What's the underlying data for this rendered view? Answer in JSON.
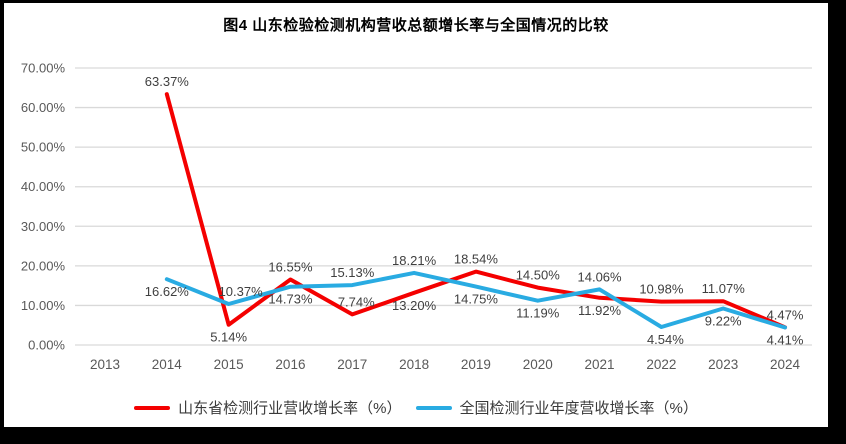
{
  "window": {
    "background": "#000000",
    "canvas_background": "#ffffff"
  },
  "title": "图4  山东检验检测机构营收总额增长率与全国情况的比较",
  "chart_data": {
    "type": "line",
    "title": "图4  山东检验检测机构营收总额增长率与全国情况的比较",
    "categories": [
      "2013",
      "2014",
      "2015",
      "2016",
      "2017",
      "2018",
      "2019",
      "2020",
      "2021",
      "2022",
      "2023",
      "2024"
    ],
    "series": [
      {
        "name": "山东省检测行业营收增长率（%）",
        "color": "#f40000",
        "values": [
          null,
          63.37,
          5.14,
          16.55,
          7.74,
          13.2,
          18.54,
          14.5,
          11.92,
          10.98,
          11.07,
          4.47
        ],
        "label_side": [
          null,
          "above",
          "below",
          "above",
          "above",
          "below",
          "above",
          "above",
          "below",
          "above",
          "above",
          "above"
        ],
        "label_dx": [
          0,
          0,
          0,
          0,
          4,
          0,
          0,
          0,
          0,
          0,
          0,
          0
        ]
      },
      {
        "name": "全国检测行业年度营收增长率（%）",
        "color": "#29abe2",
        "values": [
          null,
          16.62,
          10.37,
          14.73,
          15.13,
          18.21,
          14.75,
          11.19,
          14.06,
          4.54,
          9.22,
          4.41
        ],
        "label_side": [
          null,
          "below",
          "above",
          "below",
          "above",
          "above",
          "below",
          "below",
          "above",
          "below",
          "below",
          "below"
        ],
        "label_dx": [
          0,
          0,
          12,
          0,
          0,
          0,
          0,
          0,
          0,
          4,
          0,
          0
        ]
      }
    ],
    "ylim": [
      0,
      70
    ],
    "ytick_labels": [
      "0.00%",
      "10.00%",
      "20.00%",
      "30.00%",
      "40.00%",
      "50.00%",
      "60.00%",
      "70.00%"
    ],
    "value_suffix": "%",
    "grid": true,
    "legend_position": "bottom",
    "colors": {
      "gridline": "#d9d9d9",
      "axis_text": "#595959",
      "data_label": "#3f3f3f",
      "title_text": "#000000",
      "legend_text": "#3a3a3a"
    }
  }
}
